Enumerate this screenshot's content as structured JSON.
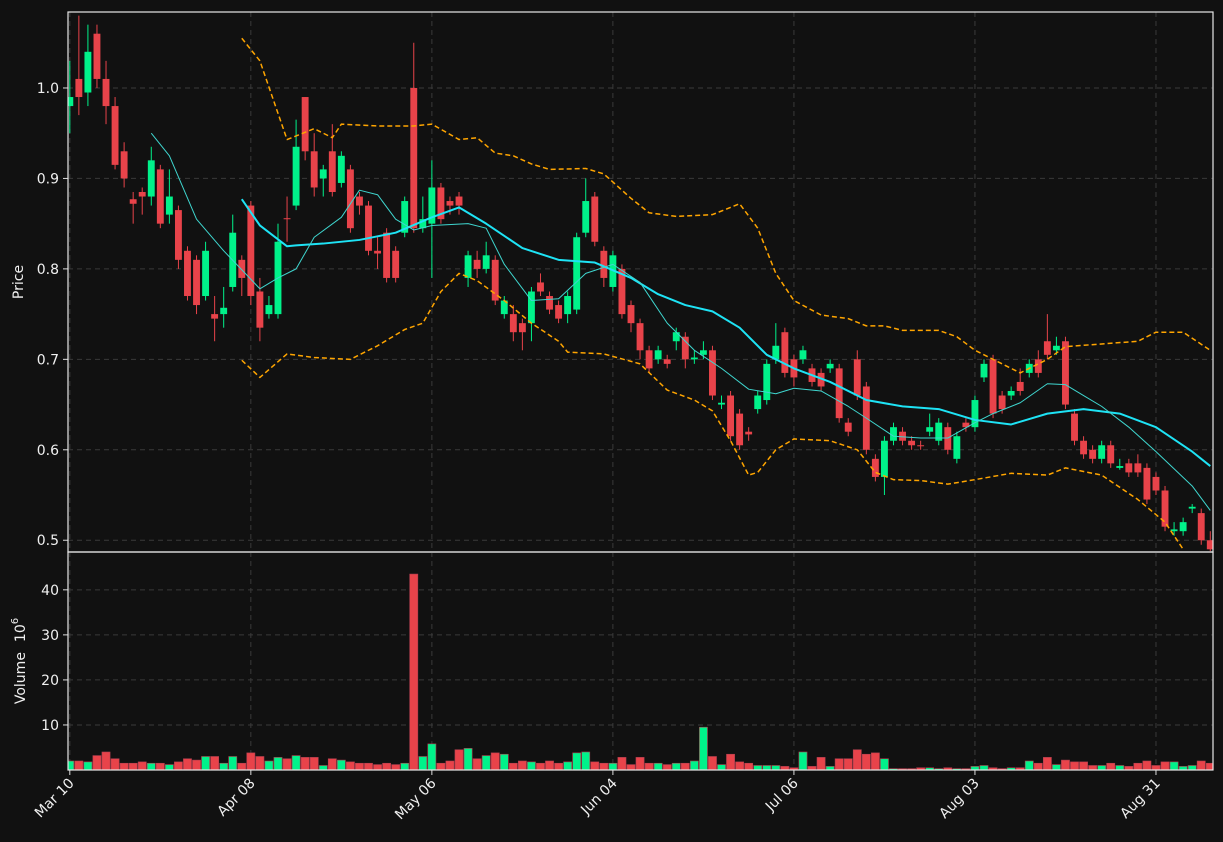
{
  "chart_data": [
    {
      "type": "candlestick",
      "ylabel": "Price",
      "xlim": [
        -0.2,
        126.3
      ],
      "ylim": [
        0.487,
        1.084
      ],
      "yticks": [
        0.5,
        0.6,
        0.7,
        0.8,
        0.9,
        {
          "value": 1,
          "label": "1.0"
        }
      ],
      "grid": true,
      "up_color": "#00f28a",
      "down_color": "#e8434a",
      "open": [
        0.98,
        1.01,
        0.995,
        1.06,
        1.01,
        0.98,
        0.93,
        0.877,
        0.885,
        0.88,
        0.91,
        0.86,
        0.865,
        0.82,
        0.81,
        0.77,
        0.75,
        0.75,
        0.78,
        0.81,
        0.87,
        0.775,
        0.75,
        0.75,
        0.856,
        0.87,
        0.99,
        0.93,
        0.9,
        0.93,
        0.895,
        0.91,
        0.88,
        0.87,
        0.82,
        0.84,
        0.82,
        0.84,
        1.0,
        0.845,
        0.85,
        0.89,
        0.875,
        0.88,
        0.79,
        0.81,
        0.8,
        0.81,
        0.75,
        0.75,
        0.74,
        0.74,
        0.785,
        0.77,
        0.76,
        0.75,
        0.755,
        0.84,
        0.88,
        0.82,
        0.78,
        0.8,
        0.76,
        0.74,
        0.71,
        0.7,
        0.7,
        0.72,
        0.725,
        0.7,
        0.705,
        0.71,
        0.65,
        0.66,
        0.64,
        0.62,
        0.645,
        0.655,
        0.7,
        0.73,
        0.7,
        0.7,
        0.69,
        0.685,
        0.69,
        0.69,
        0.63,
        0.7,
        0.67,
        0.59,
        0.57,
        0.61,
        0.62,
        0.61,
        0.605,
        0.62,
        0.61,
        0.625,
        0.59,
        0.63,
        0.625,
        0.68,
        0.7,
        0.66,
        0.66,
        0.675,
        0.685,
        0.7,
        0.72,
        0.71,
        0.72,
        0.64,
        0.61,
        0.6,
        0.59,
        0.605,
        0.58,
        0.585,
        0.585,
        0.58,
        0.57,
        0.555,
        0.51,
        0.51,
        0.535,
        0.53,
        0.5
      ],
      "high": [
        1.03,
        1.08,
        1.07,
        1.07,
        1.03,
        0.99,
        0.94,
        0.885,
        0.89,
        0.935,
        0.915,
        0.91,
        0.87,
        0.825,
        0.815,
        0.83,
        0.77,
        0.78,
        0.86,
        0.815,
        0.875,
        0.79,
        0.77,
        0.85,
        0.88,
        0.965,
        0.99,
        0.95,
        0.915,
        0.96,
        0.93,
        0.915,
        0.885,
        0.875,
        0.835,
        0.845,
        0.825,
        0.88,
        1.05,
        0.88,
        0.92,
        0.895,
        0.88,
        0.885,
        0.82,
        0.82,
        0.83,
        0.815,
        0.77,
        0.76,
        0.745,
        0.78,
        0.795,
        0.775,
        0.765,
        0.775,
        0.84,
        0.9,
        0.885,
        0.825,
        0.82,
        0.805,
        0.765,
        0.745,
        0.715,
        0.715,
        0.705,
        0.735,
        0.73,
        0.71,
        0.72,
        0.715,
        0.66,
        0.665,
        0.645,
        0.625,
        0.665,
        0.7,
        0.74,
        0.735,
        0.705,
        0.715,
        0.695,
        0.69,
        0.7,
        0.695,
        0.635,
        0.71,
        0.675,
        0.595,
        0.615,
        0.63,
        0.625,
        0.615,
        0.61,
        0.64,
        0.635,
        0.63,
        0.62,
        0.635,
        0.66,
        0.7,
        0.705,
        0.665,
        0.67,
        0.69,
        0.7,
        0.71,
        0.75,
        0.725,
        0.725,
        0.645,
        0.615,
        0.605,
        0.61,
        0.61,
        0.59,
        0.59,
        0.595,
        0.585,
        0.575,
        0.56,
        0.52,
        0.525,
        0.54,
        0.535,
        0.51
      ],
      "low": [
        0.95,
        0.97,
        0.98,
        1.0,
        0.96,
        0.91,
        0.89,
        0.85,
        0.86,
        0.87,
        0.845,
        0.85,
        0.8,
        0.765,
        0.75,
        0.765,
        0.72,
        0.735,
        0.775,
        0.77,
        0.76,
        0.72,
        0.745,
        0.745,
        0.83,
        0.865,
        0.92,
        0.88,
        0.88,
        0.88,
        0.89,
        0.84,
        0.86,
        0.815,
        0.8,
        0.785,
        0.785,
        0.835,
        0.84,
        0.84,
        0.79,
        0.85,
        0.86,
        0.86,
        0.78,
        0.79,
        0.795,
        0.76,
        0.745,
        0.72,
        0.71,
        0.72,
        0.77,
        0.75,
        0.74,
        0.74,
        0.75,
        0.835,
        0.825,
        0.78,
        0.775,
        0.745,
        0.73,
        0.7,
        0.685,
        0.695,
        0.69,
        0.71,
        0.69,
        0.695,
        0.7,
        0.655,
        0.645,
        0.61,
        0.6,
        0.61,
        0.64,
        0.65,
        0.695,
        0.68,
        0.67,
        0.695,
        0.67,
        0.665,
        0.685,
        0.63,
        0.615,
        0.655,
        0.595,
        0.565,
        0.55,
        0.605,
        0.605,
        0.6,
        0.6,
        0.615,
        0.605,
        0.595,
        0.585,
        0.62,
        0.62,
        0.675,
        0.635,
        0.64,
        0.655,
        0.66,
        0.68,
        0.68,
        0.7,
        0.705,
        0.645,
        0.605,
        0.59,
        0.585,
        0.585,
        0.58,
        0.578,
        0.57,
        0.57,
        0.54,
        0.55,
        0.51,
        0.505,
        0.505,
        0.53,
        0.495,
        0.488
      ],
      "close": [
        0.99,
        0.99,
        1.04,
        1.01,
        0.98,
        0.915,
        0.9,
        0.872,
        0.88,
        0.92,
        0.85,
        0.88,
        0.81,
        0.77,
        0.76,
        0.82,
        0.745,
        0.757,
        0.84,
        0.79,
        0.77,
        0.735,
        0.76,
        0.83,
        0.855,
        0.935,
        0.93,
        0.89,
        0.91,
        0.885,
        0.925,
        0.845,
        0.87,
        0.82,
        0.817,
        0.79,
        0.79,
        0.875,
        0.845,
        0.855,
        0.89,
        0.855,
        0.87,
        0.87,
        0.815,
        0.8,
        0.815,
        0.765,
        0.765,
        0.73,
        0.73,
        0.775,
        0.775,
        0.755,
        0.745,
        0.77,
        0.835,
        0.875,
        0.83,
        0.79,
        0.815,
        0.75,
        0.74,
        0.71,
        0.69,
        0.71,
        0.695,
        0.73,
        0.7,
        0.702,
        0.71,
        0.66,
        0.652,
        0.615,
        0.605,
        0.617,
        0.66,
        0.695,
        0.715,
        0.685,
        0.68,
        0.71,
        0.675,
        0.67,
        0.695,
        0.635,
        0.62,
        0.66,
        0.6,
        0.57,
        0.61,
        0.625,
        0.61,
        0.605,
        0.604,
        0.625,
        0.63,
        0.6,
        0.615,
        0.625,
        0.655,
        0.695,
        0.64,
        0.645,
        0.665,
        0.665,
        0.695,
        0.685,
        0.705,
        0.715,
        0.65,
        0.61,
        0.595,
        0.59,
        0.605,
        0.585,
        0.582,
        0.575,
        0.575,
        0.545,
        0.555,
        0.515,
        0.512,
        0.52,
        0.537,
        0.5,
        0.49
      ],
      "lines": [
        {
          "color": "#1ee3f5",
          "width": 2,
          "style": "solid",
          "x": [
            19,
            21,
            24,
            25,
            28,
            32,
            34,
            36,
            40,
            43,
            46,
            50,
            54,
            58,
            62,
            65,
            68,
            71,
            74,
            77,
            80,
            84,
            88,
            92,
            96,
            100,
            104,
            108,
            112,
            116,
            120,
            124,
            126
          ],
          "values": [
            0.877,
            0.848,
            0.825,
            0.826,
            0.828,
            0.832,
            0.836,
            0.84,
            0.857,
            0.868,
            0.85,
            0.823,
            0.81,
            0.807,
            0.79,
            0.772,
            0.76,
            0.753,
            0.735,
            0.705,
            0.69,
            0.675,
            0.655,
            0.648,
            0.645,
            0.633,
            0.628,
            0.64,
            0.645,
            0.64,
            0.625,
            0.598,
            0.582
          ]
        },
        {
          "color": "#3fd6cf",
          "width": 1,
          "style": "solid",
          "x": [
            9,
            11,
            14,
            17,
            21,
            23,
            25,
            27,
            30,
            32,
            34,
            36,
            38,
            40,
            44,
            46,
            48,
            51,
            54,
            57,
            60,
            63,
            66,
            69,
            72,
            75,
            78,
            80,
            83,
            86,
            88,
            91,
            94,
            97,
            100,
            102,
            105,
            108,
            110,
            112,
            114,
            117,
            120,
            124,
            126
          ],
          "values": [
            0.95,
            0.925,
            0.855,
            0.82,
            0.778,
            0.79,
            0.8,
            0.835,
            0.857,
            0.887,
            0.882,
            0.855,
            0.843,
            0.848,
            0.85,
            0.845,
            0.805,
            0.765,
            0.767,
            0.795,
            0.805,
            0.785,
            0.74,
            0.71,
            0.69,
            0.667,
            0.662,
            0.668,
            0.665,
            0.648,
            0.635,
            0.615,
            0.613,
            0.613,
            0.63,
            0.64,
            0.652,
            0.673,
            0.672,
            0.66,
            0.648,
            0.625,
            0.598,
            0.56,
            0.533
          ]
        },
        {
          "color": "#ffa500",
          "width": 1.5,
          "style": "dashed",
          "x": [
            19,
            21,
            24,
            27,
            29,
            30,
            34,
            38,
            40,
            43,
            45,
            47,
            49,
            51,
            53,
            57,
            59,
            62,
            64,
            67,
            71,
            74,
            76,
            78,
            80,
            83,
            86,
            88,
            90,
            92,
            96,
            98,
            100,
            103,
            105,
            108,
            110,
            114,
            118,
            120,
            123,
            126
          ],
          "values": [
            1.055,
            1.03,
            0.943,
            0.955,
            0.945,
            0.96,
            0.958,
            0.958,
            0.96,
            0.943,
            0.945,
            0.928,
            0.925,
            0.916,
            0.91,
            0.911,
            0.905,
            0.878,
            0.862,
            0.858,
            0.86,
            0.872,
            0.845,
            0.795,
            0.765,
            0.749,
            0.745,
            0.737,
            0.737,
            0.732,
            0.732,
            0.725,
            0.71,
            0.695,
            0.685,
            0.7,
            0.714,
            0.717,
            0.72,
            0.73,
            0.73,
            0.71
          ]
        },
        {
          "color": "#ffa500",
          "width": 1.5,
          "style": "dashed",
          "x": [
            19,
            21,
            24,
            27,
            31,
            34,
            37,
            39,
            41,
            43,
            45,
            48,
            51,
            54,
            55,
            59,
            63,
            66,
            69,
            71,
            73,
            75,
            76,
            78,
            80,
            84,
            87,
            89,
            91,
            94,
            97,
            100,
            104,
            108,
            110,
            114,
            118,
            121,
            123
          ],
          "values": [
            0.699,
            0.68,
            0.706,
            0.702,
            0.7,
            0.715,
            0.733,
            0.74,
            0.775,
            0.795,
            0.787,
            0.765,
            0.74,
            0.72,
            0.708,
            0.706,
            0.695,
            0.666,
            0.655,
            0.643,
            0.61,
            0.572,
            0.575,
            0.6,
            0.612,
            0.61,
            0.6,
            0.575,
            0.567,
            0.566,
            0.562,
            0.567,
            0.574,
            0.572,
            0.58,
            0.572,
            0.545,
            0.52,
            0.49
          ]
        }
      ]
    },
    {
      "type": "bar",
      "ylabel": "Volume",
      "multiplier": "10",
      "multiplier_exponent": "6",
      "xlim": [
        -0.2,
        126.3
      ],
      "ylim": [
        0,
        48.4
      ],
      "yticks": [
        10,
        20,
        30,
        40
      ],
      "grid": true,
      "up_color": "#00f28a",
      "down_color": "#e8434a",
      "categories": [
        "Mar 10",
        null,
        null,
        null,
        null,
        null,
        null,
        null,
        null,
        null,
        null,
        null,
        null,
        null,
        null,
        null,
        null,
        null,
        null,
        null,
        "Apr 08",
        null,
        null,
        null,
        null,
        null,
        null,
        null,
        null,
        null,
        null,
        null,
        null,
        null,
        null,
        null,
        null,
        null,
        null,
        null,
        "May 06",
        null,
        null,
        null,
        null,
        null,
        null,
        null,
        null,
        null,
        null,
        null,
        null,
        null,
        null,
        null,
        null,
        null,
        null,
        null,
        "Jun 04",
        null,
        null,
        null,
        null,
        null,
        null,
        null,
        null,
        null,
        null,
        null,
        null,
        null,
        null,
        null,
        null,
        null,
        null,
        null,
        "Jul 06",
        null,
        null,
        null,
        null,
        null,
        null,
        null,
        null,
        null,
        null,
        null,
        null,
        null,
        null,
        null,
        null,
        null,
        null,
        null,
        "Aug 03",
        null,
        null,
        null,
        null,
        null,
        null,
        null,
        null,
        null,
        null,
        null,
        null,
        null,
        null,
        null,
        null,
        null,
        null,
        null,
        "Aug 31",
        null,
        null,
        null,
        null,
        null,
        null
      ],
      "values": [
        2,
        2,
        1.8,
        3.2,
        4,
        2.5,
        1.5,
        1.5,
        1.8,
        1.5,
        1.5,
        1.2,
        1.8,
        2.5,
        2.2,
        3,
        3,
        1.5,
        3,
        1.5,
        3.8,
        3,
        2,
        2.8,
        2.5,
        3.2,
        2.8,
        2.8,
        1,
        2.5,
        2.2,
        1.8,
        1.5,
        1.5,
        1.2,
        1.5,
        1.2,
        1.5,
        43.5,
        3,
        5.8,
        1.5,
        2,
        4.5,
        4.8,
        2.5,
        3.2,
        3.8,
        3.5,
        1.5,
        2,
        1.8,
        1.5,
        2,
        1.5,
        1.8,
        3.8,
        4,
        1.8,
        1.5,
        1.5,
        2.8,
        1.2,
        2.8,
        1.5,
        1.5,
        1.2,
        1.5,
        1.5,
        2,
        9.5,
        3,
        1.2,
        3.5,
        1.8,
        1.5,
        1,
        1,
        1,
        0.8,
        0.5,
        4,
        0.8,
        2.8,
        0.8,
        2.5,
        2.5,
        4.5,
        3.5,
        3.8,
        2.5,
        0.3,
        0.3,
        0.3,
        0.5,
        0.5,
        0.3,
        0.5,
        0.3,
        0.3,
        0.8,
        1,
        0.5,
        0.3,
        0.5,
        0.5,
        2,
        1.5,
        2.8,
        1.2,
        2.2,
        1.8,
        1.8,
        1,
        1,
        1.5,
        1,
        0.8,
        1.5,
        2,
        1,
        1.8,
        1.8,
        0.8,
        1,
        2,
        1.5
      ]
    }
  ]
}
